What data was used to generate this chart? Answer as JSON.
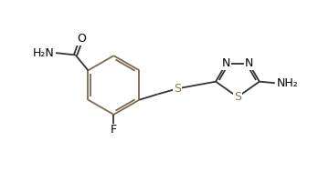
{
  "bg_color": "#ffffff",
  "bond_color": "#333333",
  "text_color": "#000000",
  "atom_colors": {
    "N": "#000000",
    "S": "#8B7355",
    "O": "#000000",
    "F": "#000000",
    "C": "#333333",
    "H": "#000000"
  },
  "figsize": [
    3.6,
    1.89
  ],
  "dpi": 100,
  "ring_bond_color": "#7B6B50"
}
